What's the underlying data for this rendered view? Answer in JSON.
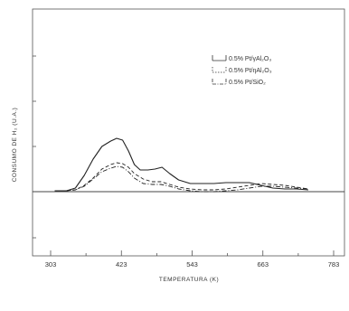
{
  "chart_data": {
    "type": "line",
    "xlabel": "TEMPERATURA (K)",
    "ylabel": "CONSUMO DE H₂ (U.A.)",
    "xlim": [
      290,
      790
    ],
    "ylim": [
      -100,
      100
    ],
    "x_ticks": [
      "303",
      "423",
      "543",
      "663",
      "783"
    ],
    "grid": false,
    "legend_position": "top-right",
    "series": [
      {
        "name": "0.5% Pt/γAl₂O₃",
        "style": "solid",
        "x": [
          310,
          330,
          345,
          360,
          375,
          390,
          405,
          415,
          425,
          435,
          445,
          455,
          468,
          480,
          492,
          505,
          520,
          540,
          560,
          580,
          600,
          620,
          640,
          660,
          680,
          700,
          720,
          740
        ],
        "y": [
          1,
          1,
          4,
          18,
          36,
          50,
          56,
          59,
          57,
          45,
          30,
          24,
          24,
          25,
          27,
          20,
          13,
          9,
          9,
          9,
          10,
          10,
          10,
          7,
          4,
          3,
          3,
          2
        ]
      },
      {
        "name": "0.5% Pt/ηAl₂O₃",
        "style": "dashed",
        "x": [
          310,
          330,
          345,
          360,
          375,
          390,
          405,
          415,
          425,
          435,
          445,
          460,
          475,
          490,
          505,
          520,
          540,
          560,
          580,
          600,
          620,
          640,
          660,
          680,
          700,
          720,
          740
        ],
        "y": [
          1,
          1,
          2,
          7,
          15,
          25,
          30,
          32,
          31,
          27,
          20,
          14,
          11,
          11,
          8,
          5,
          3,
          2,
          2,
          3,
          5,
          7,
          9,
          8,
          7,
          5,
          3
        ]
      },
      {
        "name": "0.5% Pt/SiO₂",
        "style": "dash-dot",
        "x": [
          310,
          330,
          345,
          360,
          375,
          390,
          405,
          415,
          425,
          435,
          445,
          460,
          475,
          490,
          505,
          520,
          540,
          560,
          580,
          600,
          620,
          640,
          660,
          680,
          700,
          720,
          740
        ],
        "y": [
          1,
          1,
          2,
          6,
          14,
          22,
          26,
          28,
          27,
          22,
          15,
          9,
          8,
          8,
          6,
          3,
          1,
          0,
          0,
          1,
          2,
          4,
          6,
          6,
          5,
          4,
          3
        ]
      }
    ]
  }
}
